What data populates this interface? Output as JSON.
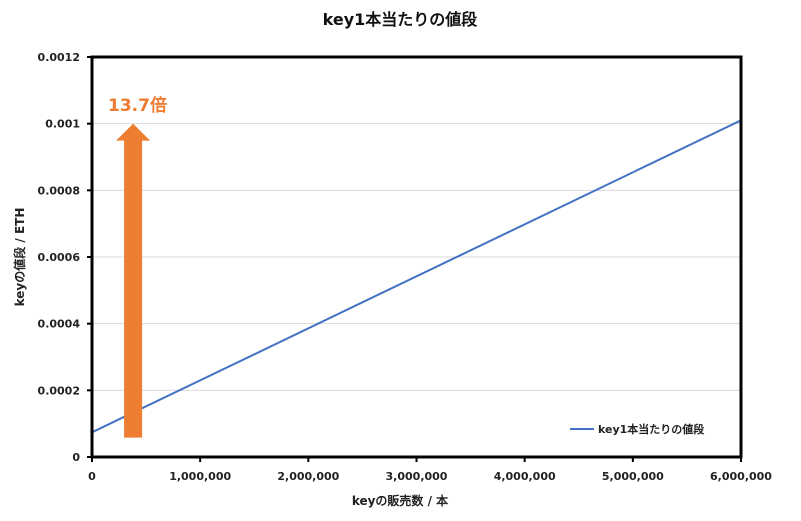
{
  "chart_data": {
    "type": "line",
    "title": "key1本当たりの値段",
    "xlabel": "keyの販売数 / 本",
    "ylabel": "keyの値段 / ETH",
    "xlim": [
      0,
      6000000
    ],
    "ylim": [
      0,
      0.0012
    ],
    "x_ticks": [
      "0",
      "1,000,000",
      "2,000,000",
      "3,000,000",
      "4,000,000",
      "5,000,000",
      "6,000,000"
    ],
    "y_ticks": [
      "0",
      "0.0002",
      "0.0004",
      "0.0006",
      "0.0008",
      "0.001",
      "0.0012"
    ],
    "grid": true,
    "legend_position": "bottom-right",
    "series": [
      {
        "name": "key1本当たりの値段",
        "color": "#4472C4",
        "x": [
          0,
          6000000
        ],
        "y": [
          7.4e-05,
          0.00101
        ]
      }
    ],
    "annotation": {
      "text": "13.7倍",
      "color": "#ED7D31",
      "arrow_x": 380000,
      "arrow_from": 5.8e-05,
      "arrow_to": 0.001
    }
  }
}
